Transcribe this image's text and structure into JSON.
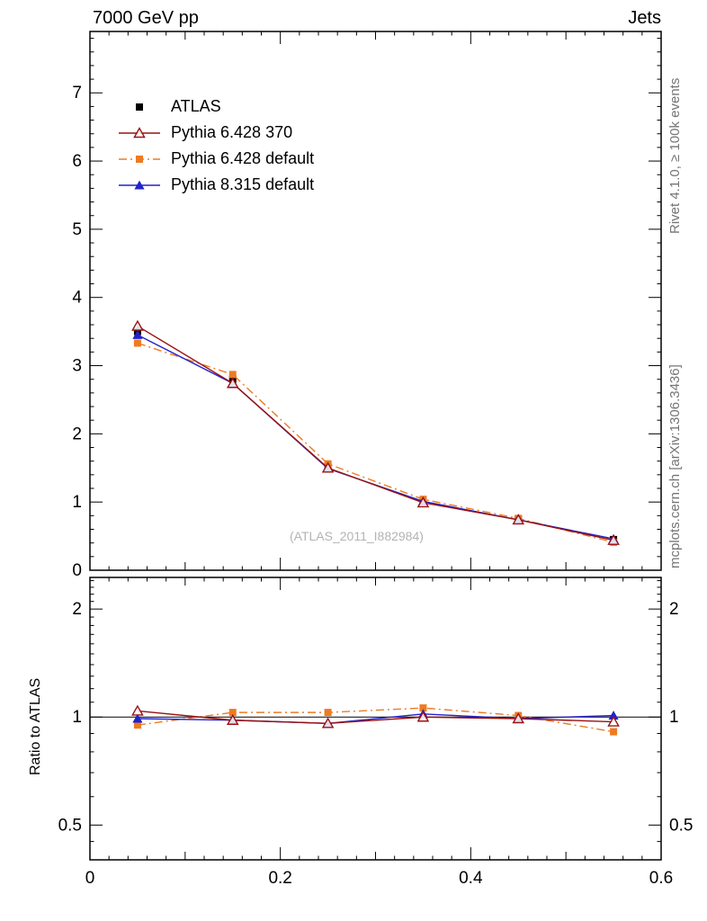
{
  "header": {
    "title_left": "7000 GeV pp",
    "title_right": "Jets"
  },
  "side": {
    "top": "Rivet 4.1.0, ≥ 100k events",
    "bottom": "mcplots.cern.ch [arXiv:1306.3436]"
  },
  "watermark": "(ATLAS_2011_I882984)",
  "axes": {
    "ratio_label": "Ratio to ATLAS"
  },
  "chart_data": {
    "type": "line",
    "x": [
      0.05,
      0.15,
      0.25,
      0.35,
      0.45,
      0.55
    ],
    "xlim": [
      0,
      0.6
    ],
    "x_tick_values": [
      0,
      0.2,
      0.4,
      0.6
    ],
    "x_tick_labels": [
      "0",
      "0.2",
      "0.4",
      "0.6"
    ],
    "main": {
      "ylim": [
        0,
        7.9
      ],
      "y_ticks": [
        0,
        1,
        2,
        3,
        4,
        5,
        6,
        7
      ],
      "series": [
        {
          "name": "ATLAS",
          "color": "#000000",
          "marker": "square-filled",
          "line": "none",
          "values": [
            3.5,
            2.8,
            1.52,
            1.0,
            0.75,
            0.45
          ],
          "errors": [
            0.09,
            0.07,
            0.05,
            0.04,
            0.03,
            0.03
          ]
        },
        {
          "name": "Pythia 6.428 370",
          "color": "#991111",
          "marker": "triangle-open",
          "line": "solid",
          "values": [
            3.58,
            2.74,
            1.5,
            0.99,
            0.74,
            0.44
          ]
        },
        {
          "name": "Pythia 6.428 default",
          "color": "#ee7b22",
          "marker": "square-filled",
          "line": "dashdot",
          "values": [
            3.33,
            2.87,
            1.56,
            1.04,
            0.76,
            0.41
          ]
        },
        {
          "name": "Pythia 8.315 default",
          "color": "#2222cc",
          "marker": "triangle-filled",
          "line": "solid",
          "values": [
            3.45,
            2.74,
            1.49,
            1.01,
            0.74,
            0.46
          ]
        }
      ]
    },
    "ratio": {
      "scale": "log",
      "ylim": [
        0.4,
        2.45
      ],
      "y_ticks": [
        0.5,
        1,
        2
      ],
      "y_tick_labels": [
        "0.5",
        "1",
        "2"
      ],
      "reference": 1,
      "series": [
        {
          "name": "Pythia 6.428 370",
          "color": "#991111",
          "marker": "triangle-open",
          "line": "solid",
          "values": [
            1.04,
            0.98,
            0.96,
            1.0,
            0.99,
            0.97
          ]
        },
        {
          "name": "Pythia 6.428 default",
          "color": "#ee7b22",
          "marker": "square-filled",
          "line": "dashdot",
          "values": [
            0.95,
            1.03,
            1.03,
            1.06,
            1.01,
            0.91
          ]
        },
        {
          "name": "Pythia 8.315 default",
          "color": "#2222cc",
          "marker": "triangle-filled",
          "line": "solid",
          "values": [
            0.99,
            0.98,
            0.96,
            1.02,
            0.99,
            1.01
          ]
        }
      ]
    }
  }
}
